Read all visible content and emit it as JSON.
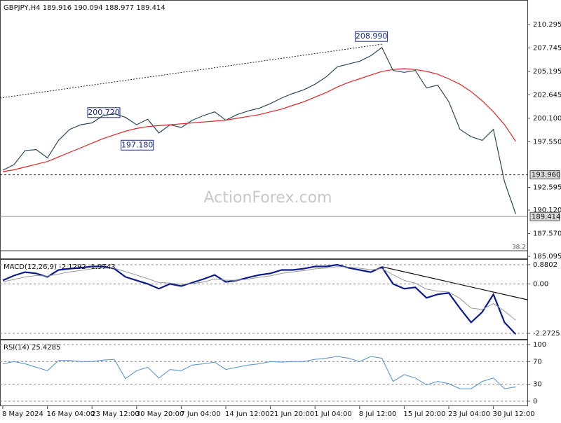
{
  "chart_data": [
    {
      "type": "line",
      "title": "GBPJPY,H4 189.916 190.094 188.977 189.414",
      "watermark": "ActionForex.com",
      "ylim": [
        184.79,
        212.81
      ],
      "yticks": [
        210.295,
        207.745,
        205.195,
        202.645,
        {
          "value": 200.1,
          "label": "200.100"
        },
        {
          "value": 197.55,
          "label": "197.550"
        },
        192.595,
        {
          "value": 190.12,
          "label": "190.120"
        },
        {
          "value": 187.57,
          "label": "187.570"
        },
        185.095
      ],
      "series": [
        {
          "color": "#2a4a5a",
          "values": [
            194.45,
            195.06,
            196.6,
            196.7,
            195.8,
            197.7,
            198.9,
            199.4,
            199.6,
            200.4,
            200.6,
            200.2,
            199.4,
            200.0,
            198.5,
            199.4,
            199.1,
            199.9,
            200.4,
            200.8,
            199.9,
            200.5,
            200.9,
            201.2,
            201.7,
            202.3,
            202.8,
            203.2,
            203.8,
            204.6,
            205.7,
            206.0,
            206.3,
            206.9,
            207.8,
            205.3,
            205.1,
            205.3,
            203.4,
            203.7,
            201.9,
            198.9,
            198.1,
            197.7,
            198.9,
            193.2,
            189.7
          ]
        },
        {
          "color": "#e02424",
          "values": [
            194.3,
            194.5,
            194.8,
            195.1,
            195.4,
            195.9,
            196.4,
            196.9,
            197.4,
            197.9,
            198.3,
            198.7,
            199.0,
            199.2,
            199.3,
            199.4,
            199.5,
            199.6,
            199.7,
            199.8,
            199.9,
            200.1,
            200.3,
            200.5,
            200.8,
            201.1,
            201.5,
            201.9,
            202.4,
            202.9,
            203.5,
            204.0,
            204.4,
            204.8,
            205.2,
            205.4,
            205.5,
            205.4,
            205.2,
            204.9,
            204.4,
            203.8,
            203.0,
            202.0,
            200.8,
            199.4,
            197.6
          ]
        }
      ],
      "levels": [
        {
          "value": 193.96,
          "label": "193.960"
        },
        {
          "value": 189.414,
          "label": "189.414"
        }
      ],
      "annotations": [
        {
          "index": 34,
          "value": 208.99,
          "label": "208.990"
        },
        {
          "index": 10,
          "value": 200.72,
          "label": "200.720"
        },
        {
          "index": 13,
          "value": 197.18,
          "label": "197.180"
        }
      ],
      "fib_label": "38.2"
    },
    {
      "type": "line",
      "title": "MACD(12,26,9) -2.1292 -1.9743",
      "ylim": [
        -2.562,
        1.073
      ],
      "yticks": [
        0.8802,
        {
          "value": 0,
          "label": "0.00"
        },
        -2.2725
      ],
      "grid": "dashed",
      "series": [
        {
          "color": "#0b1a8e",
          "width": 2.2,
          "values": [
            0.16,
            0.38,
            0.54,
            0.48,
            0.32,
            0.64,
            0.7,
            0.74,
            0.8,
            0.8,
            0.7,
            0.32,
            0.16,
            0,
            -0.22,
            0,
            -0.1,
            0.06,
            0.22,
            0.41,
            0.09,
            0.16,
            0.29,
            0.41,
            0.48,
            0.64,
            0.64,
            0.7,
            0.8,
            0.8,
            0.88,
            0.74,
            0.64,
            0.54,
            0.77,
            0,
            -0.22,
            -0.16,
            -0.64,
            -0.48,
            -0.42,
            -1.12,
            -1.77,
            -1.29,
            -0.48,
            -1.77,
            -2.31
          ]
        },
        {
          "color": "#9a9a9a",
          "width": 1,
          "values": [
            0.1,
            0.2,
            0.32,
            0.38,
            0.36,
            0.45,
            0.55,
            0.62,
            0.69,
            0.73,
            0.72,
            0.56,
            0.4,
            0.24,
            0.06,
            0.04,
            -0.02,
            0.01,
            0.09,
            0.22,
            0.17,
            0.17,
            0.22,
            0.3,
            0.37,
            0.48,
            0.55,
            0.61,
            0.69,
            0.73,
            0.79,
            0.77,
            0.72,
            0.65,
            0.7,
            0.42,
            0.16,
            0.03,
            -0.24,
            -0.34,
            -0.37,
            -0.67,
            -1.11,
            -1.18,
            -0.9,
            -1.25,
            -1.67
          ]
        }
      ]
    },
    {
      "type": "line",
      "title": "RSI(14) 25.4285",
      "ylim": [
        -8.75,
        106.25
      ],
      "yticks": [
        100,
        70,
        30,
        0
      ],
      "grid": "dashed",
      "series": [
        {
          "color": "#4f8fd0",
          "width": 1,
          "values": [
            66,
            70,
            66,
            60,
            54,
            72,
            72,
            70,
            70,
            72.5,
            74,
            40,
            54,
            60,
            41,
            56,
            54,
            64,
            66,
            69,
            56,
            60,
            64,
            66,
            70,
            69,
            70,
            70,
            74,
            76,
            79,
            76,
            70,
            79,
            76,
            35,
            47,
            41,
            29,
            35,
            31,
            22,
            22,
            35,
            41,
            22,
            25.4285
          ]
        }
      ],
      "categories": [
        "8 May 2024",
        null,
        null,
        null,
        "16 May 04:00",
        null,
        null,
        null,
        "23 May 12:00",
        null,
        null,
        null,
        "30 May 20:00",
        null,
        null,
        null,
        "7 Jun 04:00",
        null,
        null,
        null,
        "14 Jun 12:00",
        null,
        null,
        null,
        "21 Jun 20:00",
        null,
        null,
        null,
        "1 Jul 04:00",
        null,
        null,
        null,
        "8 Jul 12:00",
        null,
        null,
        null,
        "15 Jul 20:00",
        null,
        null,
        null,
        "23 Jul 04:00",
        null,
        null,
        null,
        "30 Jul 12:00",
        null,
        null
      ]
    }
  ]
}
